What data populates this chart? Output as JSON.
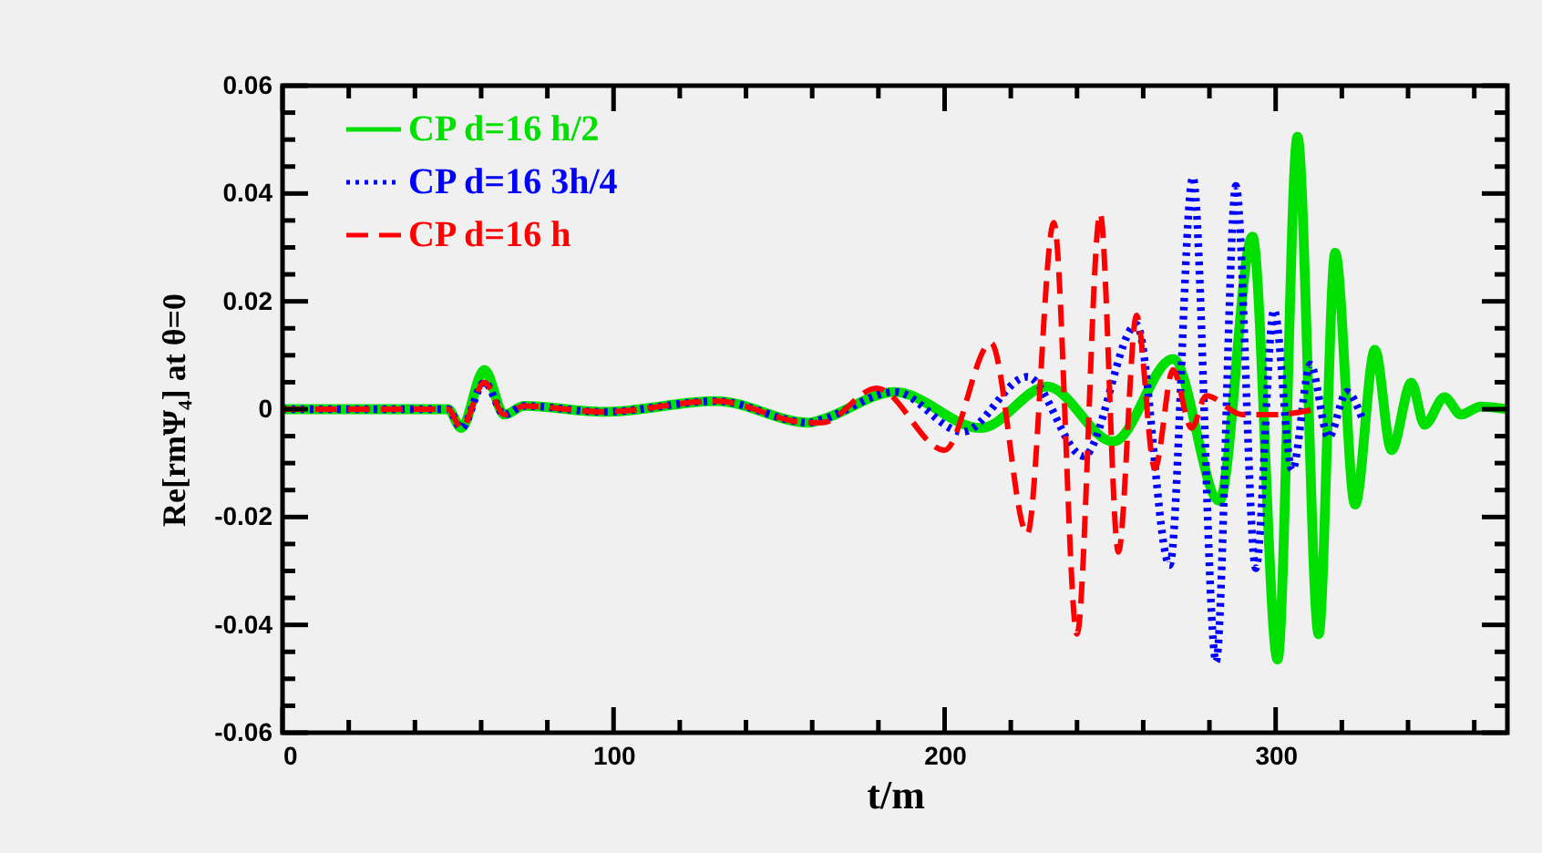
{
  "chart_data": {
    "type": "line",
    "xlabel": "t/m",
    "ylabel": "Re[rmΨ₄] at θ=0",
    "xlim": [
      0,
      370
    ],
    "ylim": [
      -0.06,
      0.06
    ],
    "xticks": [
      0,
      {
        "value": 20,
        "label": null
      },
      {
        "value": 40,
        "label": null
      },
      {
        "value": 60,
        "label": null
      },
      {
        "value": 80,
        "label": null
      },
      100,
      {
        "value": 120,
        "label": null
      },
      {
        "value": 140,
        "label": null
      },
      {
        "value": 160,
        "label": null
      },
      {
        "value": 180,
        "label": null
      },
      200,
      {
        "value": 220,
        "label": null
      },
      {
        "value": 240,
        "label": null
      },
      {
        "value": 260,
        "label": null
      },
      {
        "value": 280,
        "label": null
      },
      300,
      {
        "value": 320,
        "label": null
      },
      {
        "value": 340,
        "label": null
      },
      {
        "value": 360,
        "label": null
      }
    ],
    "yticks": [
      -0.06,
      {
        "value": -0.055,
        "label": null
      },
      {
        "value": -0.05,
        "label": null
      },
      {
        "value": -0.045,
        "label": null
      },
      -0.04,
      {
        "value": -0.035,
        "label": null
      },
      {
        "value": -0.03,
        "label": null
      },
      {
        "value": -0.025,
        "label": null
      },
      -0.02,
      {
        "value": -0.015,
        "label": null
      },
      {
        "value": -0.01,
        "label": null
      },
      {
        "value": -0.005,
        "label": null
      },
      0,
      {
        "value": 0.005,
        "label": null
      },
      {
        "value": 0.01,
        "label": null
      },
      {
        "value": 0.015,
        "label": null
      },
      0.02,
      {
        "value": 0.025,
        "label": null
      },
      {
        "value": 0.03,
        "label": null
      },
      {
        "value": 0.035,
        "label": null
      },
      0.04,
      {
        "value": 0.045,
        "label": null
      },
      {
        "value": 0.05,
        "label": null
      },
      {
        "value": 0.055,
        "label": null
      },
      0.06
    ],
    "grid": false,
    "legend": "top left",
    "marker": "none",
    "series": [
      {
        "name": "CP d=16 h/2",
        "color": "#00e000",
        "line_style": "solid",
        "x": [
          0,
          50,
          54,
          61,
          67,
          73,
          97,
          131,
          159,
          163,
          185,
          211,
          231,
          251,
          269,
          283,
          293,
          300.6,
          306.6,
          313,
          318,
          324,
          330,
          335,
          341,
          345,
          351,
          356,
          362,
          370
        ],
        "values": [
          0,
          0,
          -0.0035,
          0.0073,
          -0.001,
          0.0006,
          -0.0005,
          0.0015,
          -0.0025,
          -0.0019,
          0.0032,
          -0.0035,
          0.0042,
          -0.006,
          0.0093,
          -0.017,
          0.032,
          -0.0464,
          0.0505,
          -0.0417,
          0.029,
          -0.0177,
          0.011,
          -0.0076,
          0.0049,
          -0.0029,
          0.0022,
          -0.001,
          0.0005,
          0
        ]
      },
      {
        "name": "CP d=16 3h/4",
        "color": "#0000ff",
        "line_style": "dotted",
        "x": [
          0,
          50,
          54,
          61,
          67,
          73,
          97,
          131,
          159,
          163,
          185,
          205.5,
          225,
          242,
          258,
          268,
          275,
          282,
          288,
          294,
          299.5,
          305,
          310.5,
          316,
          321.5,
          326
        ],
        "values": [
          0,
          0,
          -0.0035,
          0.005,
          -0.001,
          0.0006,
          -0.0005,
          0.0015,
          -0.0025,
          -0.0019,
          0.0032,
          -0.0042,
          0.006,
          -0.0087,
          0.0157,
          -0.0289,
          0.043,
          -0.0468,
          0.0414,
          -0.0295,
          0.0184,
          -0.0113,
          0.0083,
          -0.0052,
          0.0032,
          -0.0015
        ]
      },
      {
        "name": "CP d=16 h",
        "color": "#ff0000",
        "line_style": "dashed",
        "x": [
          0,
          50,
          54,
          61,
          67,
          73,
          97,
          131,
          159,
          163,
          179.5,
          200,
          214,
          225,
          233,
          240,
          247,
          252.5,
          258,
          263.5,
          269,
          274.6,
          279,
          290,
          300,
          312
        ],
        "values": [
          0,
          0,
          -0.0035,
          0.005,
          -0.001,
          0.0006,
          -0.0005,
          0.0015,
          -0.0025,
          -0.0025,
          0.0039,
          -0.0076,
          0.0123,
          -0.0231,
          0.0346,
          -0.0417,
          0.0363,
          -0.0265,
          0.0174,
          -0.011,
          0.0073,
          -0.0035,
          0.0025,
          -0.001,
          -0.001,
          0
        ]
      }
    ]
  }
}
